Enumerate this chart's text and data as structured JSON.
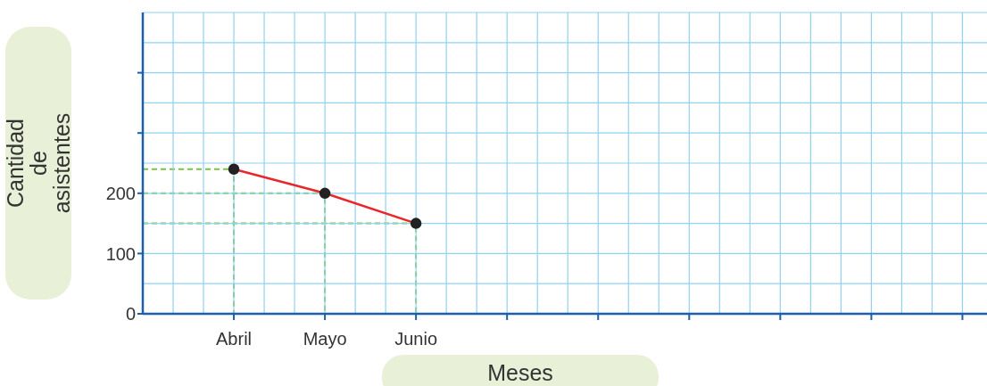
{
  "chart_data": {
    "type": "line",
    "xlabel": "Meses",
    "ylabel": "Cantidad de asistentes",
    "categories": [
      "Abril",
      "Mayo",
      "Junio",
      null,
      null,
      null,
      null,
      null,
      null
    ],
    "series": [
      {
        "color": "#e8262b",
        "values": [
          240,
          200,
          150,
          null,
          null,
          null,
          null,
          null,
          null
        ]
      }
    ],
    "ylim": [
      0,
      500
    ],
    "yticks": [
      0,
      100,
      200,
      {
        "value": 300,
        "label": null
      },
      {
        "value": 400,
        "label": null
      }
    ],
    "grid": true,
    "marker": "circle"
  }
}
